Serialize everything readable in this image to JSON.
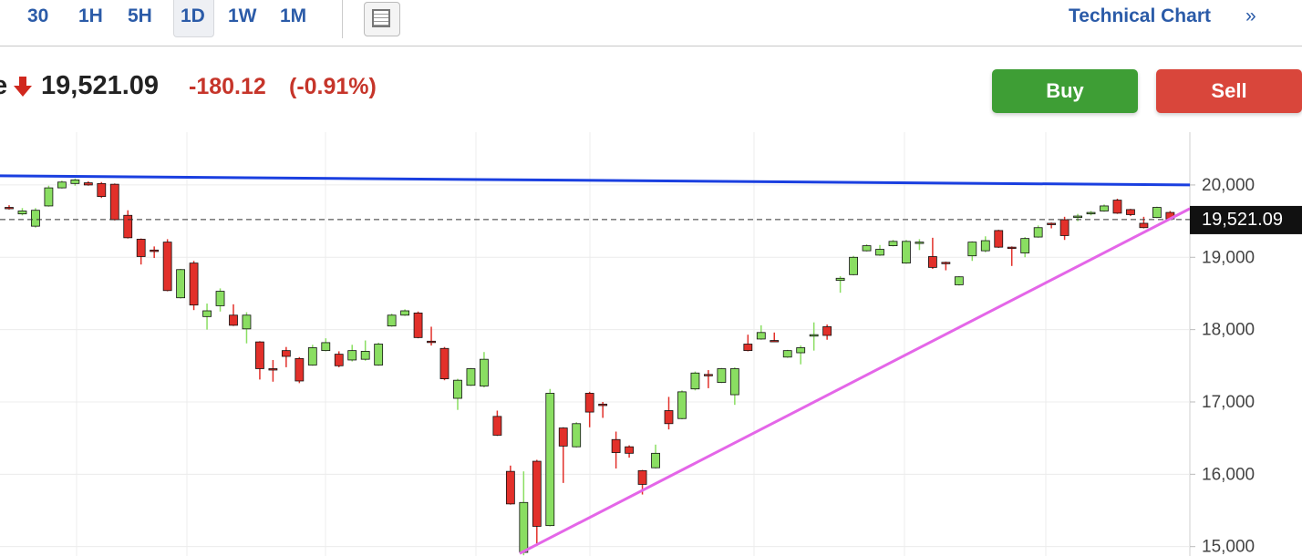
{
  "toolbar": {
    "tabs": [
      "30",
      "1H",
      "5H",
      "1D",
      "1W",
      "1M"
    ],
    "selected": "1D",
    "link": "Technical Chart",
    "link_arrow": "»"
  },
  "quote": {
    "name_fragment": "e",
    "price": "19,521.09",
    "change": "-180.12",
    "change_pct": "(-0.91%)"
  },
  "buttons": {
    "buy": "Buy",
    "sell": "Sell"
  },
  "chart_data": {
    "type": "candlestick",
    "open": [
      19690,
      19600,
      19430,
      19710,
      19960,
      20020,
      20030,
      20020,
      20010,
      19580,
      19250,
      19100,
      19210,
      18440,
      18920,
      18180,
      18330,
      18200,
      18010,
      17830,
      17460,
      17710,
      17600,
      17510,
      17710,
      17660,
      17580,
      17590,
      17510,
      18050,
      18200,
      18230,
      17840,
      17740,
      17050,
      17230,
      17220,
      16800,
      16040,
      14920,
      16180,
      15290,
      16640,
      16380,
      17120,
      16970,
      16480,
      16380,
      16050,
      16090,
      16880,
      16770,
      17180,
      17380,
      17270,
      17100,
      17800,
      17870,
      17850,
      17620,
      17680,
      17910,
      18040,
      18680,
      18760,
      19090,
      19030,
      19160,
      18920,
      19200,
      19010,
      18930,
      18620,
      19020,
      19090,
      19370,
      19140,
      19060,
      19280,
      19470,
      19520,
      19550,
      19600,
      19640,
      19790,
      19660,
      19470,
      19550,
      19620
    ],
    "high": [
      19720,
      19680,
      19680,
      19990,
      20060,
      20090,
      20050,
      20040,
      20020,
      19650,
      19260,
      19150,
      19250,
      18840,
      18950,
      18360,
      18570,
      18350,
      18240,
      17840,
      17580,
      17760,
      17620,
      17790,
      17880,
      17700,
      17790,
      17850,
      17820,
      18220,
      18280,
      18250,
      18040,
      17760,
      17320,
      17470,
      17690,
      16880,
      16120,
      16040,
      16200,
      17180,
      16650,
      16720,
      17140,
      17000,
      16590,
      16400,
      16060,
      16410,
      17070,
      17160,
      17420,
      17440,
      17470,
      17480,
      17930,
      18060,
      17960,
      17720,
      17780,
      18100,
      18070,
      18740,
      19020,
      19180,
      19170,
      19240,
      19240,
      19250,
      19270,
      18940,
      18740,
      19220,
      19290,
      19380,
      19150,
      19280,
      19440,
      19480,
      19560,
      19600,
      19640,
      19730,
      19810,
      19670,
      19560,
      19700,
      19640
    ],
    "low": [
      19660,
      19580,
      19410,
      19700,
      19950,
      19990,
      19990,
      19820,
      19510,
      19260,
      18900,
      18990,
      18530,
      18430,
      18270,
      18000,
      18250,
      18050,
      17810,
      17310,
      17280,
      17480,
      17260,
      17500,
      17700,
      17480,
      17560,
      17570,
      17500,
      18040,
      18190,
      17880,
      17780,
      17300,
      16890,
      17220,
      17200,
      16530,
      15580,
      14880,
      15010,
      15280,
      15880,
      16370,
      16650,
      16780,
      16080,
      16230,
      15720,
      16080,
      16620,
      16760,
      17160,
      17190,
      17260,
      16960,
      17700,
      17860,
      17830,
      17610,
      17520,
      17710,
      17860,
      18510,
      18750,
      19080,
      19020,
      19150,
      18910,
      19100,
      18840,
      18820,
      18610,
      18950,
      19070,
      19130,
      18880,
      19000,
      19270,
      19400,
      19240,
      19500,
      19580,
      19630,
      19600,
      19570,
      19400,
      19540,
      19520
    ],
    "close": [
      19680,
      19640,
      19650,
      19960,
      20040,
      20070,
      20000,
      19840,
      19520,
      19270,
      19010,
      19080,
      18540,
      18830,
      18340,
      18260,
      18530,
      18060,
      18200,
      17460,
      17450,
      17630,
      17290,
      17750,
      17820,
      17500,
      17710,
      17700,
      17800,
      18200,
      18260,
      17890,
      17830,
      17320,
      17300,
      17460,
      17590,
      16540,
      15590,
      15610,
      15280,
      17120,
      16390,
      16700,
      16860,
      16950,
      16300,
      16290,
      15860,
      16290,
      16700,
      17140,
      17400,
      17370,
      17460,
      17460,
      17710,
      17960,
      17840,
      17710,
      17750,
      17930,
      17920,
      18710,
      19000,
      19160,
      19110,
      19220,
      19220,
      19210,
      18860,
      18920,
      18730,
      19210,
      19230,
      19140,
      19130,
      19260,
      19410,
      19460,
      19300,
      19570,
      19620,
      19710,
      19610,
      19590,
      19410,
      19690,
      19530
    ],
    "up_color": "#8ade62",
    "down_color": "#e2302a",
    "ylim": [
      14870,
      20730
    ],
    "yticks": [
      {
        "value": 15000,
        "label": "15,000"
      },
      {
        "value": 16000,
        "label": "16,000"
      },
      {
        "value": 17000,
        "label": "17,000"
      },
      {
        "value": 18000,
        "label": "18,000"
      },
      {
        "value": 19000,
        "label": "19,000"
      },
      {
        "value": 20000,
        "label": "20,000"
      }
    ],
    "grid": true,
    "last_price": {
      "value": 19521.09,
      "label": "19,521.09"
    },
    "trendlines": [
      {
        "color": "#1a3fe0",
        "start": [
          -0.7,
          20126
        ],
        "end": [
          89.5,
          20000
        ]
      },
      {
        "color": "#e466e8",
        "start": [
          38.7,
          14905
        ],
        "end": [
          89.5,
          19673
        ]
      }
    ]
  }
}
